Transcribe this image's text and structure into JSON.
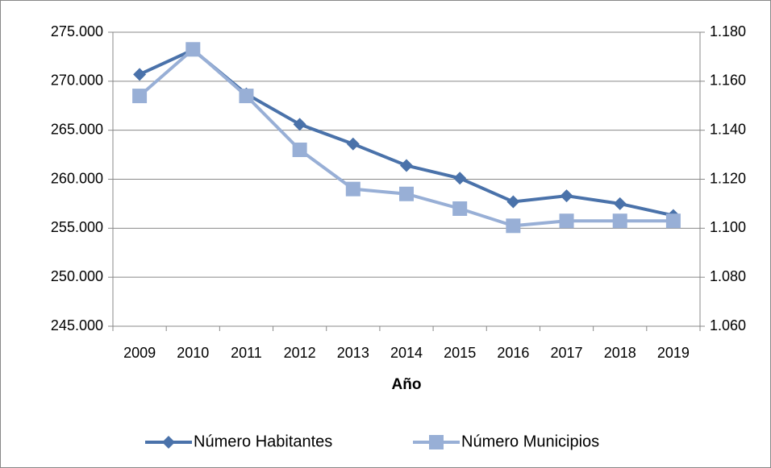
{
  "chart_data": {
    "type": "line",
    "xlabel": "Año",
    "categories": [
      "2009",
      "2010",
      "2011",
      "2012",
      "2013",
      "2014",
      "2015",
      "2016",
      "2017",
      "2018",
      "2019"
    ],
    "series": [
      {
        "name": "Número Habitantes",
        "color": "#4a72aa",
        "marker": "diamond",
        "axis": "y",
        "values": [
          270700,
          273200,
          268700,
          265600,
          263600,
          261400,
          260100,
          257700,
          258300,
          257500,
          256300
        ]
      },
      {
        "name": "Número Municipios",
        "color": "#98afd6",
        "marker": "square",
        "axis": "y2",
        "values": [
          1154,
          1173,
          1154,
          1132,
          1116,
          1114,
          1108,
          1101,
          1103,
          1103,
          1103
        ]
      }
    ],
    "ylim": [
      245000,
      275000
    ],
    "yticks": [
      {
        "value": 245000,
        "label": "245.000"
      },
      {
        "value": 250000,
        "label": "250.000"
      },
      {
        "value": 255000,
        "label": "255.000"
      },
      {
        "value": 260000,
        "label": "260.000"
      },
      {
        "value": 265000,
        "label": "265.000"
      },
      {
        "value": 270000,
        "label": "270.000"
      },
      {
        "value": 275000,
        "label": "275.000"
      }
    ],
    "y2lim": [
      1060,
      1180
    ],
    "y2ticks": [
      {
        "value": 1060,
        "label": "1.060"
      },
      {
        "value": 1080,
        "label": "1.080"
      },
      {
        "value": 1100,
        "label": "1.100"
      },
      {
        "value": 1120,
        "label": "1.120"
      },
      {
        "value": 1140,
        "label": "1.140"
      },
      {
        "value": 1160,
        "label": "1.160"
      },
      {
        "value": 1180,
        "label": "1.180"
      }
    ],
    "grid": true,
    "legend": "bottom"
  }
}
